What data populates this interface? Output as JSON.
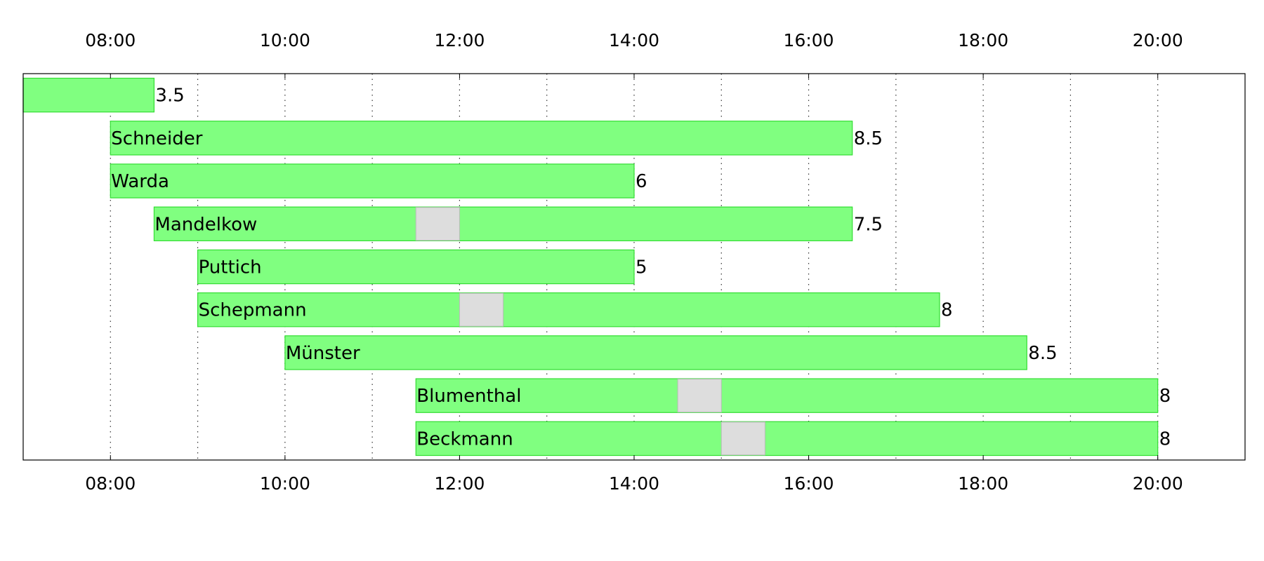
{
  "chart_data": {
    "type": "gantt",
    "title": "",
    "xlabel": "",
    "ylabel": "",
    "x_unit": "hour of day",
    "xlim": [
      7,
      21
    ],
    "x_ticks": [
      8,
      10,
      12,
      14,
      16,
      18,
      20
    ],
    "x_tick_labels": [
      "08:00",
      "10:00",
      "12:00",
      "14:00",
      "16:00",
      "18:00",
      "20:00"
    ],
    "x_axis_labels_position": "top and bottom",
    "grid": "vertical dotted lines every hour",
    "colors": {
      "work": "#80ff80",
      "work_border": "#33dd33",
      "break": "#dddddd",
      "break_border": "#bbbbbb"
    },
    "rows": [
      {
        "name": "",
        "start": 7.0,
        "end": 8.5,
        "break": null,
        "hours": "3.5"
      },
      {
        "name": "Schneider",
        "start": 8.0,
        "end": 16.5,
        "break": null,
        "hours": "8.5"
      },
      {
        "name": "Warda",
        "start": 8.0,
        "end": 14.0,
        "break": null,
        "hours": "6"
      },
      {
        "name": "Mandelkow",
        "start": 8.5,
        "end": 16.5,
        "break": [
          11.5,
          12.0
        ],
        "hours": "7.5"
      },
      {
        "name": "Puttich",
        "start": 9.0,
        "end": 14.0,
        "break": null,
        "hours": "5"
      },
      {
        "name": "Schepmann",
        "start": 9.0,
        "end": 17.5,
        "break": [
          12.0,
          12.5
        ],
        "hours": "8"
      },
      {
        "name": "Münster",
        "start": 10.0,
        "end": 18.5,
        "break": null,
        "hours": "8.5"
      },
      {
        "name": "Blumenthal",
        "start": 11.5,
        "end": 20.0,
        "break": [
          14.5,
          15.0
        ],
        "hours": "8"
      },
      {
        "name": "Beckmann",
        "start": 11.5,
        "end": 20.0,
        "break": [
          15.0,
          15.5
        ],
        "hours": "8"
      }
    ]
  }
}
